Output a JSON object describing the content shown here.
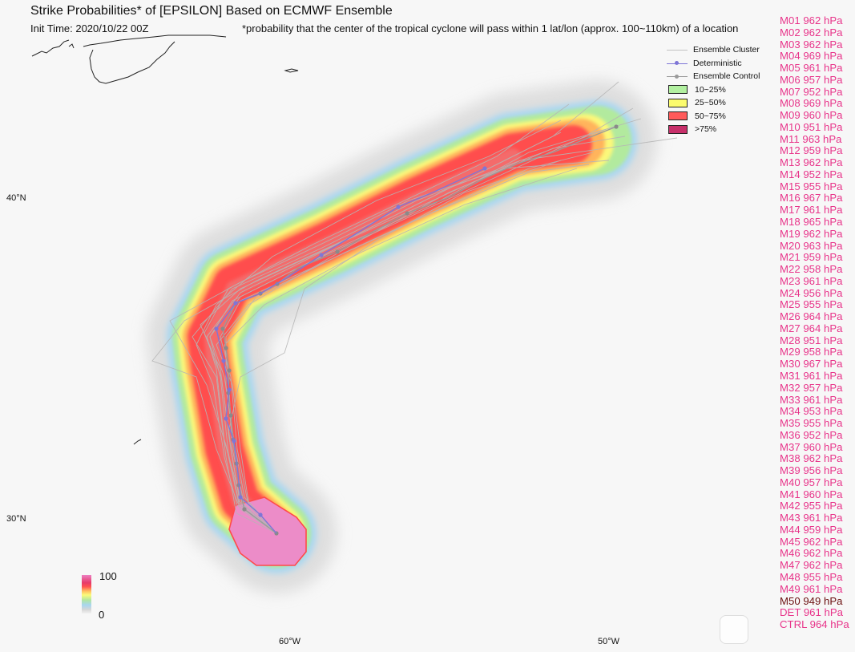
{
  "header": {
    "title": "Strike Probabilities* of [EPSILON] Based on ECMWF Ensemble",
    "init_time": "Init Time: 2020/10/22 00Z",
    "footnote": "*probability that the center of the tropical cyclone will pass within 1 lat/lon (approx. 100~110km) of a location"
  },
  "axes": {
    "lat_labels": [
      "40°N",
      "30°N"
    ],
    "lon_labels": [
      "60°W",
      "50°W"
    ]
  },
  "legend": {
    "items": [
      {
        "label": "Ensemble Cluster",
        "kind": "line",
        "color": "#c2c2c2"
      },
      {
        "label": "Deterministic",
        "kind": "line-dot",
        "color": "#7f76d6"
      },
      {
        "label": "Ensemble Control",
        "kind": "line-dot",
        "color": "#9a9a9a"
      },
      {
        "label": "10~25%",
        "kind": "box",
        "color": "#b2f0a0"
      },
      {
        "label": "25~50%",
        "kind": "box",
        "color": "#fbfb6e"
      },
      {
        "label": "50~75%",
        "kind": "box",
        "color": "#ff5a5a"
      },
      {
        "label": ">75%",
        "kind": "box",
        "color": "#c7306a"
      }
    ]
  },
  "colorbar": {
    "max_label": "100",
    "min_label": "0"
  },
  "members": [
    {
      "name": "M01",
      "pressure": "962 hPa"
    },
    {
      "name": "M02",
      "pressure": "962 hPa"
    },
    {
      "name": "M03",
      "pressure": "962 hPa"
    },
    {
      "name": "M04",
      "pressure": "969 hPa"
    },
    {
      "name": "M05",
      "pressure": "961 hPa"
    },
    {
      "name": "M06",
      "pressure": "957 hPa"
    },
    {
      "name": "M07",
      "pressure": "952 hPa"
    },
    {
      "name": "M08",
      "pressure": "969 hPa"
    },
    {
      "name": "M09",
      "pressure": "960 hPa"
    },
    {
      "name": "M10",
      "pressure": "951 hPa"
    },
    {
      "name": "M11",
      "pressure": "963 hPa"
    },
    {
      "name": "M12",
      "pressure": "959 hPa"
    },
    {
      "name": "M13",
      "pressure": "962 hPa"
    },
    {
      "name": "M14",
      "pressure": "952 hPa"
    },
    {
      "name": "M15",
      "pressure": "955 hPa"
    },
    {
      "name": "M16",
      "pressure": "967 hPa"
    },
    {
      "name": "M17",
      "pressure": "961 hPa"
    },
    {
      "name": "M18",
      "pressure": "965 hPa"
    },
    {
      "name": "M19",
      "pressure": "962 hPa"
    },
    {
      "name": "M20",
      "pressure": "963 hPa"
    },
    {
      "name": "M21",
      "pressure": "959 hPa"
    },
    {
      "name": "M22",
      "pressure": "958 hPa"
    },
    {
      "name": "M23",
      "pressure": "961 hPa"
    },
    {
      "name": "M24",
      "pressure": "956 hPa"
    },
    {
      "name": "M25",
      "pressure": "955 hPa"
    },
    {
      "name": "M26",
      "pressure": "964 hPa"
    },
    {
      "name": "M27",
      "pressure": "964 hPa"
    },
    {
      "name": "M28",
      "pressure": "951 hPa"
    },
    {
      "name": "M29",
      "pressure": "958 hPa"
    },
    {
      "name": "M30",
      "pressure": "967 hPa"
    },
    {
      "name": "M31",
      "pressure": "961 hPa"
    },
    {
      "name": "M32",
      "pressure": "957 hPa"
    },
    {
      "name": "M33",
      "pressure": "961 hPa"
    },
    {
      "name": "M34",
      "pressure": "953 hPa"
    },
    {
      "name": "M35",
      "pressure": "955 hPa"
    },
    {
      "name": "M36",
      "pressure": "952 hPa"
    },
    {
      "name": "M37",
      "pressure": "960 hPa"
    },
    {
      "name": "M38",
      "pressure": "962 hPa"
    },
    {
      "name": "M39",
      "pressure": "956 hPa"
    },
    {
      "name": "M40",
      "pressure": "957 hPa"
    },
    {
      "name": "M41",
      "pressure": "960 hPa"
    },
    {
      "name": "M42",
      "pressure": "955 hPa"
    },
    {
      "name": "M43",
      "pressure": "961 hPa"
    },
    {
      "name": "M44",
      "pressure": "959 hPa"
    },
    {
      "name": "M45",
      "pressure": "962 hPa"
    },
    {
      "name": "M46",
      "pressure": "962 hPa"
    },
    {
      "name": "M47",
      "pressure": "962 hPa"
    },
    {
      "name": "M48",
      "pressure": "955 hPa"
    },
    {
      "name": "M49",
      "pressure": "961 hPa"
    },
    {
      "name": "M50",
      "pressure": "949 hPa",
      "highlight": true
    },
    {
      "name": "DET",
      "pressure": "961 hPa"
    },
    {
      "name": "CTRL",
      "pressure": "964 hPa"
    }
  ],
  "colors": {
    "background": "#f7f7f7",
    "member_text": "#e8348a",
    "member_highlight": "#6b0f0f",
    "deterministic": "#7f76d6",
    "control": "#9a9a9a",
    "cluster": "#bdbdbd"
  }
}
